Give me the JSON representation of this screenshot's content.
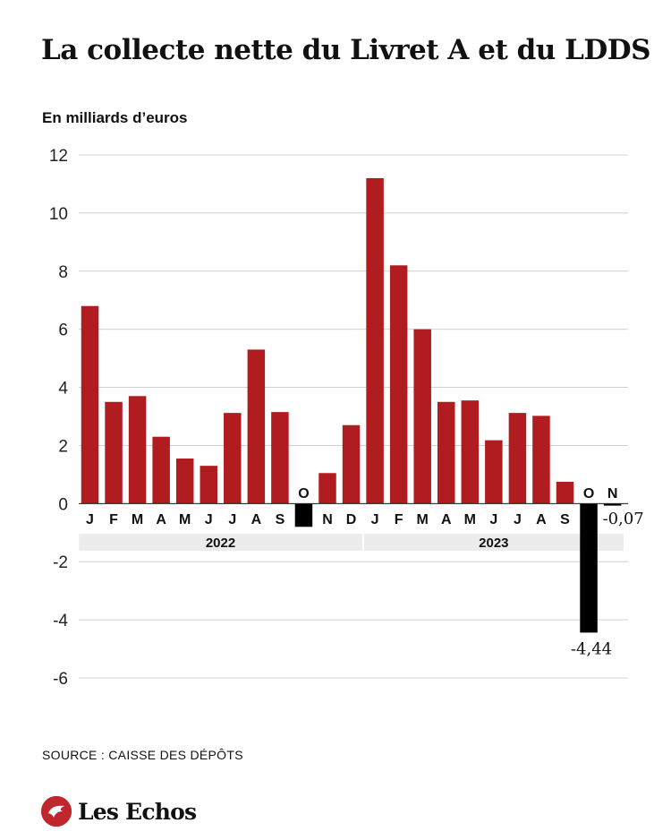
{
  "header": {
    "title": "La collecte nette du Livret A et du LDDS",
    "unit_label": "En milliards d’euros"
  },
  "footer": {
    "source": "SOURCE : CAISSE DES DÉPÔTS",
    "brand": "Les Echos"
  },
  "colors": {
    "positive": "#b01c1f",
    "negative": "#000000",
    "grid": "#d0d0d0",
    "year_band": "#ececec",
    "brand": "#c0272d"
  },
  "chart_data": {
    "type": "bar",
    "title": "La collecte nette du Livret A et du LDDS",
    "ylabel": "En milliards d’euros",
    "ylim": [
      -6,
      12
    ],
    "yticks": [
      12,
      10,
      8,
      6,
      4,
      2,
      0,
      -2,
      -4,
      -6
    ],
    "grid": true,
    "categories": [
      "J",
      "F",
      "M",
      "A",
      "M",
      "J",
      "J",
      "A",
      "S",
      "O",
      "N",
      "D",
      "J",
      "F",
      "M",
      "A",
      "M",
      "J",
      "J",
      "A",
      "S",
      "O",
      "N"
    ],
    "years": [
      {
        "label": "2022",
        "from": 0,
        "to": 11
      },
      {
        "label": "2023",
        "from": 12,
        "to": 22
      }
    ],
    "values": [
      6.8,
      3.5,
      3.7,
      2.3,
      1.55,
      1.3,
      3.12,
      5.3,
      3.15,
      -0.8,
      1.05,
      2.7,
      11.2,
      8.2,
      6.0,
      3.5,
      3.55,
      2.18,
      3.12,
      3.02,
      0.75,
      -4.44,
      -0.07
    ],
    "data_labels": [
      {
        "index": 21,
        "text": "-4,44"
      },
      {
        "index": 22,
        "text": "-0,07"
      }
    ]
  }
}
